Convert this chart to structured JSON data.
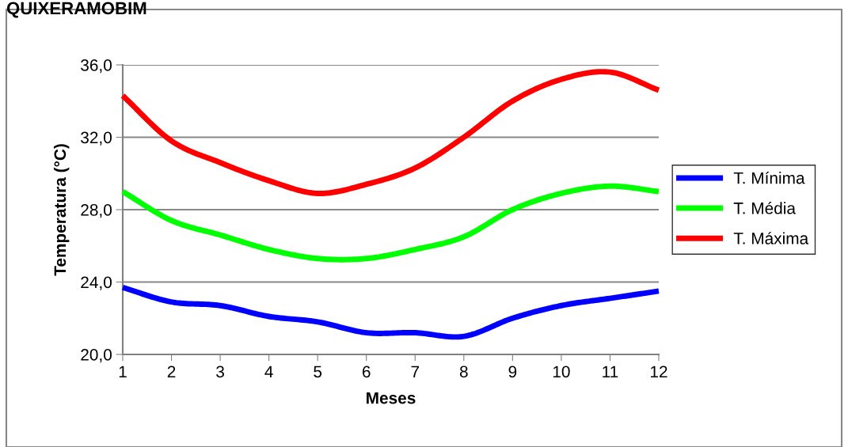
{
  "chart_data": {
    "type": "line",
    "title": "QUIXERAMOBIM",
    "xlabel": "Meses",
    "ylabel": "Temperatura (°C)",
    "x": [
      1,
      2,
      3,
      4,
      5,
      6,
      7,
      8,
      9,
      10,
      11,
      12
    ],
    "series": [
      {
        "name": "T. Mínima",
        "color": "#0000ff",
        "values": [
          23.7,
          22.9,
          22.7,
          22.1,
          21.8,
          21.2,
          21.2,
          21.0,
          22.0,
          22.7,
          23.1,
          23.5
        ]
      },
      {
        "name": "T. Média",
        "color": "#00ff00",
        "values": [
          29.0,
          27.4,
          26.6,
          25.8,
          25.3,
          25.3,
          25.8,
          26.5,
          28.0,
          28.9,
          29.3,
          29.0
        ]
      },
      {
        "name": "T. Máxima",
        "color": "#ff0000",
        "values": [
          34.3,
          31.8,
          30.6,
          29.6,
          28.9,
          29.4,
          30.3,
          32.0,
          34.0,
          35.2,
          35.6,
          34.6
        ]
      }
    ],
    "xlim": [
      1,
      12
    ],
    "xticks": [
      1,
      2,
      3,
      4,
      5,
      6,
      7,
      8,
      9,
      10,
      11,
      12
    ],
    "ylim": [
      20,
      36
    ],
    "yticks": [
      {
        "value": 20,
        "label": "20,0"
      },
      {
        "value": 24,
        "label": "24,0"
      },
      {
        "value": 28,
        "label": "28,0"
      },
      {
        "value": 32,
        "label": "32,0"
      },
      {
        "value": 36,
        "label": "36,0"
      }
    ],
    "grid": "y",
    "legend": "right",
    "marker": "none",
    "line_style": "solid"
  }
}
